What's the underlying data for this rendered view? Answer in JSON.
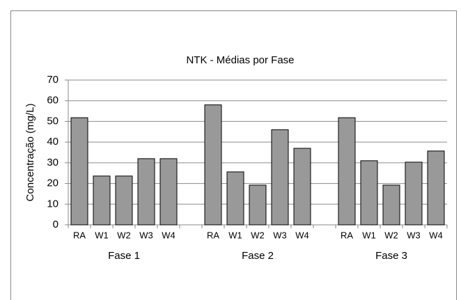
{
  "chart_data": {
    "type": "bar",
    "title": "NTK - Médias por Fase",
    "y_label": "Concentração (mg/L)",
    "groups": [
      "Fase 1",
      "Fase 2",
      "Fase 3"
    ],
    "categories": [
      "RA",
      "W1",
      "W2",
      "W3",
      "W4",
      "RA",
      "W1",
      "W2",
      "W3",
      "W4",
      "RA",
      "W1",
      "W2",
      "W3",
      "W4"
    ],
    "values": [
      51.8,
      23.6,
      23.6,
      32,
      32,
      58,
      25.6,
      19.2,
      46,
      37,
      51.8,
      31,
      19.2,
      30.3,
      35.7
    ],
    "color": "#999999",
    "ylim": [
      0,
      70
    ],
    "yticks": [
      0,
      10,
      20,
      30,
      40,
      50,
      60,
      70
    ],
    "grid": true
  }
}
